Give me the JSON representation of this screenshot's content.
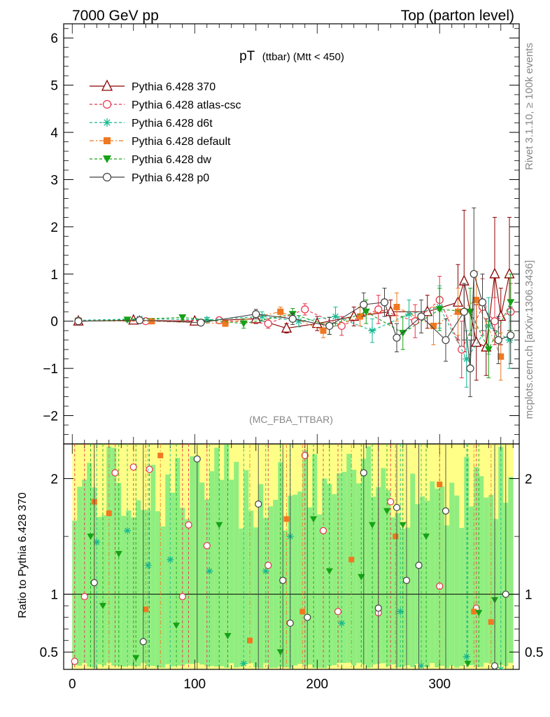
{
  "header": {
    "left": "7000 GeV pp",
    "right": "Top (parton level)"
  },
  "side": {
    "rivet": "Rivet 3.1.10, ≥ 100k events",
    "mcplots": "mcplots.cern.ch [arXiv:1306.3436]"
  },
  "colors": {
    "p370": "#8b0000",
    "atlas": "#e8304a",
    "d6t": "#17b890",
    "default": "#f07820",
    "dw": "#16a116",
    "p0": "#404040",
    "band_yellow": "#ffff88",
    "band_green": "#90ee80"
  },
  "chart_data": [
    {
      "type": "scatter",
      "panel": "main",
      "title": "pT",
      "title_sub": "(ttbar) (Mtt < 450)",
      "watermark": "(MC_FBA_TTBAR)",
      "xlim": [
        -7,
        365
      ],
      "ylim": [
        -2.6,
        6.3
      ],
      "yticks": [
        -2,
        -1,
        0,
        1,
        2,
        3,
        4,
        5,
        6
      ],
      "ytick_labels": [
        "−2",
        "−1",
        "0",
        "1",
        "2",
        "3",
        "4",
        "5",
        "6"
      ],
      "legend_position": "top-left",
      "series": [
        {
          "name": "Pythia 6.428 370",
          "key": "p370",
          "marker": "triangle-open",
          "dash": "",
          "ypos": 4,
          "x": [
            5,
            50,
            100,
            150,
            175,
            200,
            230,
            260,
            290,
            315,
            320,
            330,
            338,
            345,
            350,
            357
          ],
          "y": [
            0,
            0.02,
            0.0,
            0.05,
            -0.15,
            -0.05,
            0.1,
            0.2,
            0.2,
            0.4,
            0.85,
            -0.45,
            -0.55,
            1.0,
            0.1,
            1.0
          ],
          "err": [
            0.03,
            0.03,
            0.05,
            0.1,
            0.1,
            0.15,
            0.2,
            0.25,
            0.35,
            0.8,
            1.5,
            0.8,
            0.6,
            1.2,
            0.6,
            1.2
          ]
        },
        {
          "name": "Pythia 6.428 atlas-csc",
          "key": "atlas",
          "marker": "circle-open",
          "dash": "4,3",
          "ypos": 3,
          "x": [
            5,
            60,
            120,
            160,
            190,
            220,
            250,
            280,
            300,
            318,
            335,
            345,
            358
          ],
          "y": [
            0.01,
            0.0,
            0.02,
            -0.05,
            0.25,
            -0.1,
            0.25,
            0.0,
            0.45,
            -0.6,
            0.3,
            0.0,
            0.2
          ],
          "err": [
            0.03,
            0.04,
            0.06,
            0.1,
            0.12,
            0.2,
            0.3,
            0.35,
            0.5,
            0.6,
            0.6,
            0.5,
            0.6
          ]
        },
        {
          "name": "Pythia 6.428 d6t",
          "key": "d6t",
          "marker": "star",
          "dash": "4,3",
          "ypos": 2,
          "x": [
            5,
            55,
            110,
            155,
            185,
            215,
            245,
            275,
            300,
            322,
            340,
            357
          ],
          "y": [
            0.02,
            0.05,
            0.03,
            0.1,
            0.0,
            0.1,
            -0.2,
            0.15,
            0.3,
            -0.8,
            -0.1,
            -0.4
          ],
          "err": [
            0.03,
            0.04,
            0.05,
            0.1,
            0.12,
            0.2,
            0.25,
            0.3,
            0.45,
            0.6,
            0.6,
            0.6
          ]
        },
        {
          "name": "Pythia 6.428 default",
          "key": "default",
          "marker": "square",
          "dash": "6,3,2,3",
          "ypos": 1,
          "x": [
            5,
            65,
            125,
            170,
            205,
            235,
            265,
            295,
            315,
            330,
            350
          ],
          "y": [
            0.01,
            0.0,
            -0.05,
            0.2,
            -0.2,
            0.1,
            0.3,
            -0.1,
            0.2,
            0.45,
            -0.75
          ],
          "err": [
            0.03,
            0.04,
            0.06,
            0.1,
            0.15,
            0.2,
            0.3,
            0.4,
            0.5,
            0.6,
            0.5
          ]
        },
        {
          "name": "Pythia 6.428 dw",
          "key": "dw",
          "marker": "triangle-down",
          "dash": "4,3",
          "ypos": 0,
          "x": [
            5,
            45,
            90,
            140,
            180,
            210,
            240,
            270,
            300,
            325,
            340,
            358
          ],
          "y": [
            0.0,
            0.03,
            0.08,
            -0.05,
            0.15,
            -0.1,
            0.2,
            -0.25,
            0.25,
            0.2,
            -0.6,
            0.4
          ],
          "err": [
            0.03,
            0.04,
            0.05,
            0.1,
            0.12,
            0.18,
            0.25,
            0.35,
            0.45,
            0.5,
            0.6,
            0.6
          ]
        },
        {
          "name": "Pythia 6.428 p0",
          "key": "p0",
          "marker": "circle-open",
          "dash": "",
          "ypos": -1,
          "x": [
            5,
            55,
            105,
            150,
            180,
            210,
            238,
            255,
            265,
            285,
            305,
            320,
            325,
            328,
            335,
            348,
            358
          ],
          "y": [
            0.0,
            0.02,
            -0.03,
            0.15,
            0.05,
            -0.1,
            0.35,
            0.4,
            -0.35,
            0.1,
            -0.4,
            0.2,
            -1.0,
            1.0,
            0.4,
            -0.4,
            -0.3
          ],
          "err": [
            0.03,
            0.04,
            0.05,
            0.1,
            0.12,
            0.18,
            0.25,
            0.3,
            0.3,
            0.35,
            0.45,
            0.6,
            0.6,
            1.4,
            0.6,
            0.5,
            0.6
          ]
        }
      ]
    },
    {
      "type": "scatter",
      "panel": "ratio",
      "ylabel": "Ratio to Pythia 6.428 370",
      "xlim": [
        -7,
        365
      ],
      "ylim": [
        0.35,
        2.3
      ],
      "yticks": [
        0.5,
        1,
        2
      ],
      "ytick_labels": [
        "0.5",
        "1",
        "2"
      ],
      "xticks": [
        0,
        100,
        200,
        300
      ],
      "xtick_labels": [
        "0",
        "100",
        "200",
        "300"
      ],
      "reference_line": 1,
      "points": [
        {
          "key": "atlas",
          "x": [
            2,
            10,
            35,
            50,
            63,
            90,
            95,
            110,
            160,
            190,
            205,
            217,
            250,
            260,
            300,
            330
          ],
          "y": [
            0.42,
            0.98,
            2.05,
            2.1,
            2.08,
            0.98,
            1.6,
            1.42,
            1.25,
            2.2,
            1.55,
            0.85,
            0.84,
            1.8,
            1.07,
            0.88
          ]
        },
        {
          "key": "d6t",
          "x": [
            20,
            45,
            62,
            80,
            112,
            140,
            158,
            178,
            220,
            268,
            285,
            322,
            350
          ],
          "y": [
            1.45,
            1.55,
            1.25,
            1.3,
            1.2,
            0.4,
            1.2,
            1.5,
            0.75,
            0.85,
            0.38,
            0.46,
            0.35
          ]
        },
        {
          "key": "default",
          "x": [
            18,
            30,
            60,
            72,
            145,
            175,
            188,
            228,
            264,
            300,
            328,
            342
          ],
          "y": [
            1.8,
            1.7,
            0.87,
            2.2,
            0.6,
            1.65,
            0.85,
            1.3,
            1.5,
            1.95,
            0.85,
            0.76
          ]
        },
        {
          "key": "dw",
          "x": [
            15,
            25,
            38,
            52,
            85,
            120,
            127,
            170,
            197,
            210,
            236,
            245,
            257,
            270,
            289,
            323,
            332,
            345
          ],
          "y": [
            1.5,
            0.9,
            1.35,
            0.45,
            0.73,
            1.6,
            0.64,
            0.5,
            1.65,
            1.2,
            1.15,
            1.6,
            1.72,
            1.6,
            1.5,
            0.4,
            0.84,
            0.95
          ]
        },
        {
          "key": "p0",
          "x": [
            18,
            58,
            102,
            152,
            172,
            178,
            192,
            238,
            250,
            265,
            273,
            283,
            305,
            345,
            354
          ],
          "y": [
            1.1,
            0.59,
            2.17,
            1.78,
            1.12,
            0.75,
            0.8,
            2.05,
            0.88,
            1.75,
            1.12,
            1.25,
            1.72,
            0.38,
            1.0
          ]
        }
      ]
    }
  ]
}
